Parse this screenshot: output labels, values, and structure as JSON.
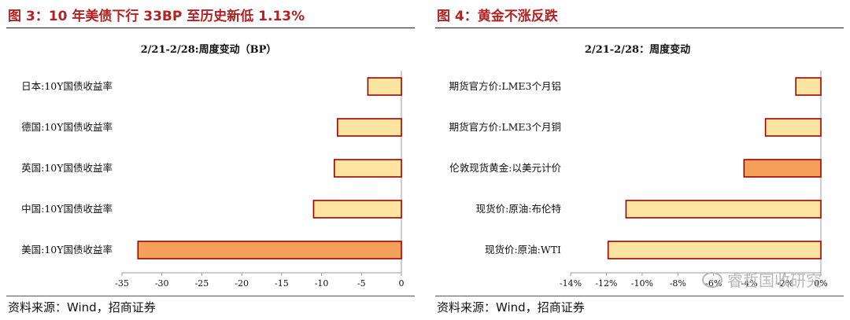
{
  "figures": [
    {
      "fig_title": "图 3：10 年美债下行 33BP 至历史新低 1.13%",
      "source": "资料来源：Wind，招商证券"
    },
    {
      "fig_title": "图 4：黄金不涨反跌",
      "source": "资料来源：Wind，招商证券"
    }
  ],
  "watermark": "睿哲国收研究",
  "chart_data": [
    {
      "type": "bar",
      "orientation": "horizontal",
      "title": "2/21-2/28:周度变动（BP）",
      "categories": [
        "日本:10Y国债收益率",
        "德国:10Y国债收益率",
        "英国:10Y国债收益率",
        "中国:10Y国债收益率",
        "美国:10Y国债收益率"
      ],
      "values": [
        -4.2,
        -8,
        -8.4,
        -11,
        -33
      ],
      "xlim": [
        -35,
        0
      ],
      "ticks": [
        -35,
        -30,
        -25,
        -20,
        -15,
        -10,
        -5,
        0
      ],
      "tick_labels": [
        "-35",
        "-30",
        "-25",
        "-20",
        "-15",
        "-10",
        "-5",
        "0"
      ],
      "colors": [
        "#fde4a0",
        "#fde4a0",
        "#fde4a0",
        "#fde4a0",
        "#f5a05a"
      ],
      "border_color": "#a00000",
      "grid": false
    },
    {
      "type": "bar",
      "orientation": "horizontal",
      "title": "2/21-2/28：周度变动",
      "categories": [
        "期货官方价:LME3个月铝",
        "期货官方价:LME3个月铜",
        "伦敦现货黄金:以美元计价",
        "现货价:原油:布伦特",
        "现货价:原油:WTI"
      ],
      "values": [
        -1.4,
        -3.1,
        -4.3,
        -10.9,
        -11.9
      ],
      "xlim": [
        -14,
        0
      ],
      "ticks": [
        -14,
        -12,
        -10,
        -8,
        -6,
        -4,
        -2,
        0
      ],
      "tick_labels": [
        "-14%",
        "-12%",
        "-10%",
        "-8%",
        "-6%",
        "-4%",
        "-2%",
        "0%"
      ],
      "colors": [
        "#fde4a0",
        "#fde4a0",
        "#f5a05a",
        "#fde4a0",
        "#fde4a0"
      ],
      "border_color": "#a00000",
      "grid": false
    }
  ]
}
